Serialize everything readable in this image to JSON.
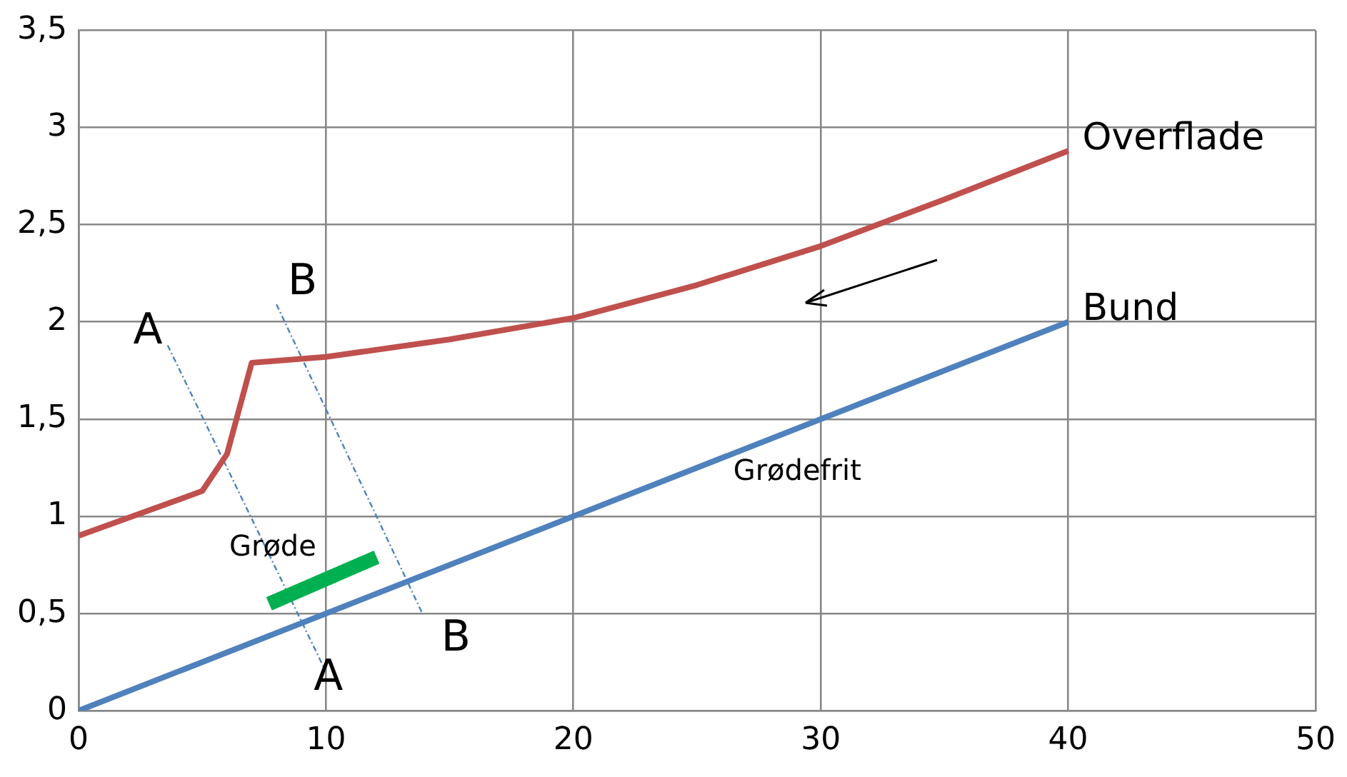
{
  "chart_data": {
    "type": "line",
    "xlim": [
      0,
      50
    ],
    "xticks": [
      0,
      10,
      20,
      30,
      40,
      50
    ],
    "ylim": [
      0,
      3.5
    ],
    "yticks": [
      0,
      {
        "value": 0.5,
        "label": "0,5"
      },
      1,
      {
        "value": 1.5,
        "label": "1,5"
      },
      2,
      {
        "value": 2.5,
        "label": "2,5"
      },
      3,
      {
        "value": 3.5,
        "label": "3,5"
      }
    ],
    "grid": true,
    "legend": false,
    "marker": "none",
    "series": [
      {
        "name": "Overflade",
        "color": "#c0504d",
        "x": [
          0,
          5,
          6,
          7,
          10,
          15,
          20,
          25,
          30,
          35,
          40
        ],
        "values": [
          0.9,
          1.13,
          1.32,
          1.79,
          1.82,
          1.91,
          2.02,
          2.19,
          2.39,
          2.63,
          2.88
        ]
      },
      {
        "name": "Bund",
        "color": "#4f81bd",
        "x": [
          0,
          40
        ],
        "values": [
          0,
          2
        ]
      },
      {
        "color": "#00b050",
        "x": [
          7.7,
          12.05
        ],
        "values": [
          0.55,
          0.79
        ]
      },
      {
        "color": "#4f81bd",
        "line_style": "dashed",
        "x": [
          3.6,
          10
        ],
        "values": [
          1.88,
          0.2
        ]
      },
      {
        "color": "#4f81bd",
        "line_style": "dashed",
        "x": [
          8,
          13.9
        ],
        "values": [
          2.09,
          0.5
        ]
      }
    ],
    "annotations": [
      "A",
      "A",
      "B",
      "B",
      "Grøde",
      "Grødefrit"
    ]
  }
}
